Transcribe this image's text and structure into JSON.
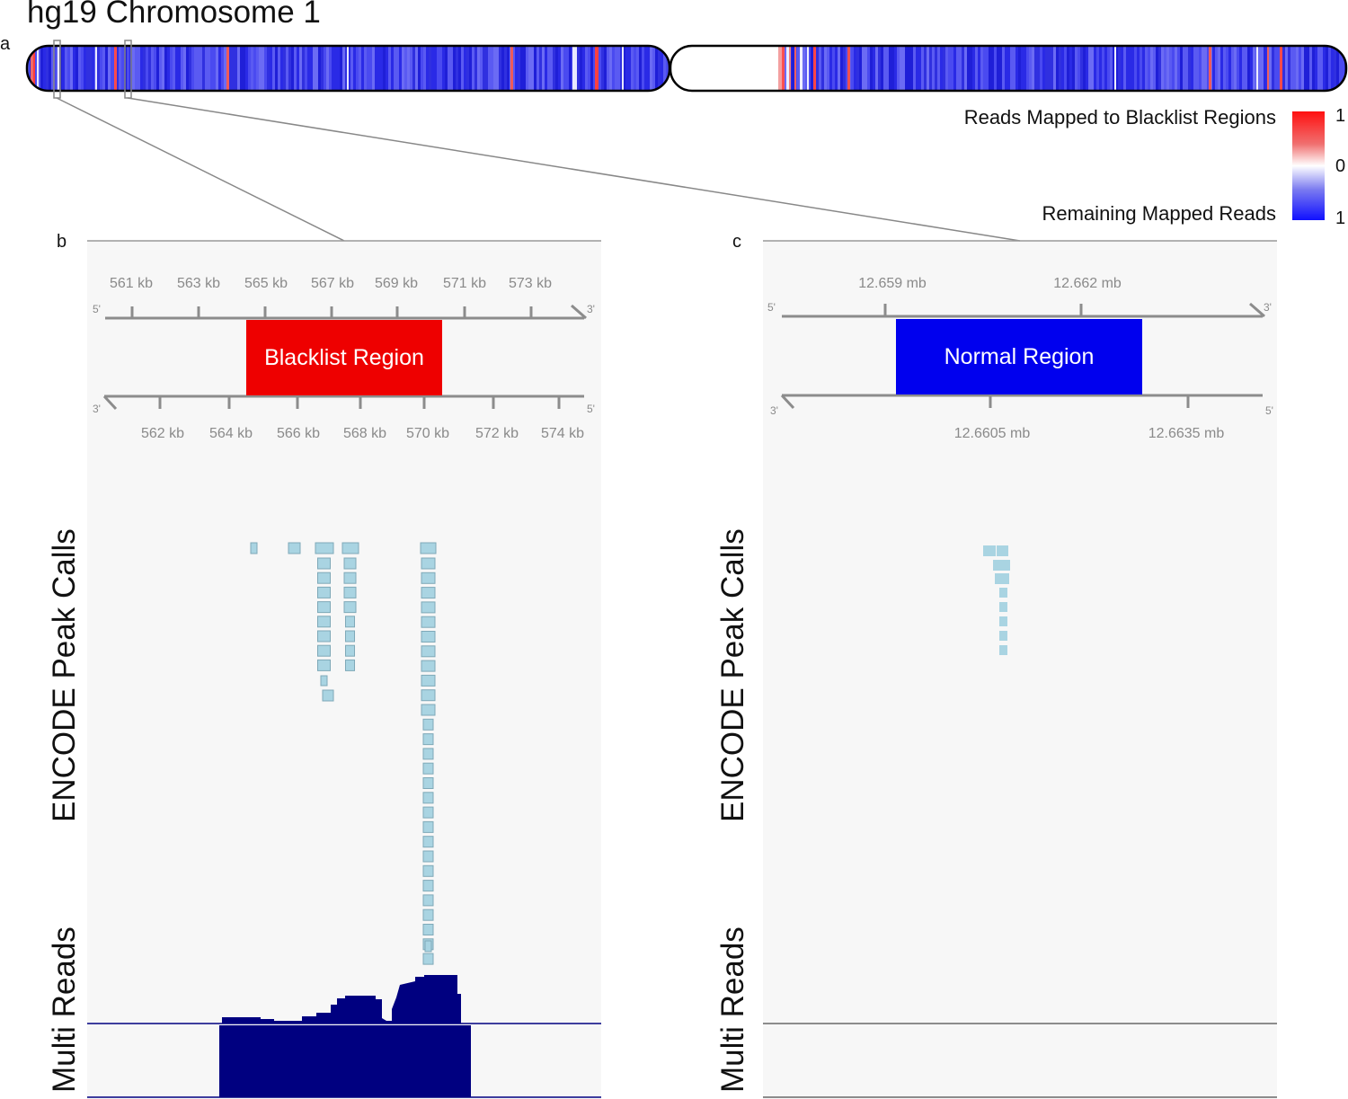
{
  "title": "hg19 Chromosome 1",
  "panel_labels": {
    "a": "a",
    "b": "b",
    "c": "c"
  },
  "legend": {
    "top_text": "Reads Mapped to Blacklist Regions",
    "bottom_text": "Remaining Mapped Reads",
    "scale_top": "1",
    "scale_mid": "0",
    "scale_bottom": "1",
    "colors": {
      "blacklist": "#ff1010",
      "neutral": "#ffffff",
      "remaining": "#1010ff"
    }
  },
  "panel_b": {
    "region_label": "Blacklist Region",
    "region_color": "#ee0000",
    "top_ticks": [
      "561 kb",
      "563 kb",
      "565 kb",
      "567 kb",
      "569 kb",
      "571 kb",
      "573 kb"
    ],
    "bottom_ticks": [
      "562 kb",
      "564 kb",
      "566 kb",
      "568 kb",
      "570 kb",
      "572 kb",
      "574 kb"
    ],
    "strand_top_left": "5'",
    "strand_top_right": "3'",
    "strand_bottom_left": "3'",
    "strand_bottom_right": "5'",
    "track1_label": "ENCODE Peak Calls",
    "track2_label": "Multi Reads"
  },
  "panel_c": {
    "region_label": "Normal Region",
    "region_color": "#0000ee",
    "top_ticks": [
      "12.659 mb",
      "12.662 mb"
    ],
    "bottom_ticks": [
      "12.6605 mb",
      "12.6635 mb"
    ],
    "strand_top_left": "5'",
    "strand_top_right": "3'",
    "strand_bottom_left": "3'",
    "strand_bottom_right": "5'",
    "track1_label": "ENCODE Peak Calls",
    "track2_label": "Multi Reads"
  },
  "peak_color": "#a9d4e2",
  "reads_color": "#000080"
}
